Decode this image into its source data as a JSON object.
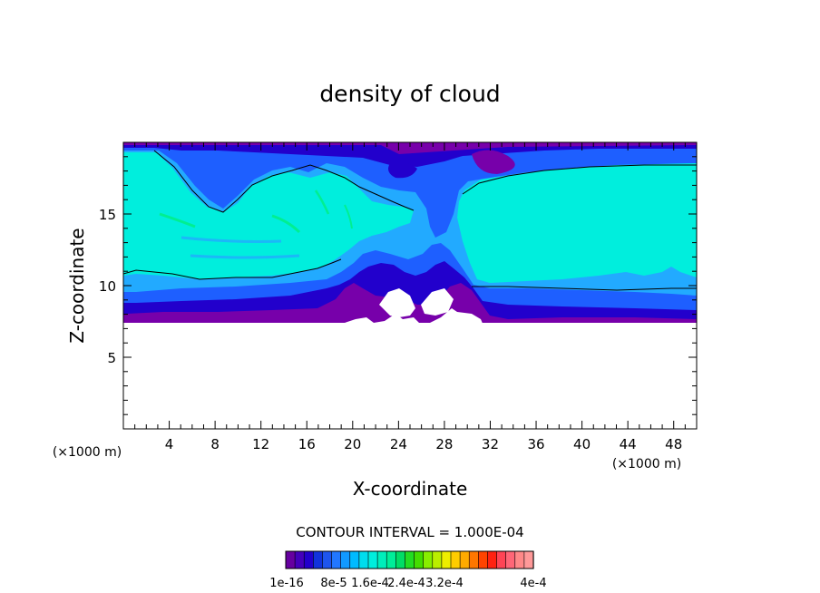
{
  "chart_data": {
    "type": "heatmap",
    "title": "density of cloud",
    "xlabel": "X-coordinate",
    "ylabel": "Z-coordinate",
    "x_unit": "(×1000 m)",
    "y_unit": "(×1000 m)",
    "xlim": [
      0,
      50
    ],
    "ylim": [
      0,
      20
    ],
    "x_ticks": [
      4,
      8,
      12,
      16,
      20,
      24,
      28,
      32,
      36,
      40,
      44,
      48
    ],
    "y_ticks": [
      5,
      10,
      15
    ],
    "contour_interval_text": "CONTOUR INTERVAL = 1.000E-04",
    "colorbar": {
      "labels": [
        "1e-16",
        "8e-5",
        "1.6e-4",
        "2.4e-4",
        "3.2e-4",
        "4e-4"
      ],
      "colors": [
        "#6600a0",
        "#4400bb",
        "#2200cc",
        "#1133dd",
        "#1e55ee",
        "#2277ff",
        "#1199ff",
        "#00bbff",
        "#00ddee",
        "#00eedd",
        "#00eebb",
        "#00ee99",
        "#00dd66",
        "#22dd22",
        "#44dd00",
        "#88ee00",
        "#bbee00",
        "#eeee00",
        "#ffcc00",
        "#ffaa00",
        "#ff7700",
        "#ff4400",
        "#ff2211",
        "#ff4455",
        "#ff6677",
        "#ff8888",
        "#ff9999"
      ]
    },
    "fill_colors": {
      "purple": "#7700aa",
      "dark_blue": "#2200cc",
      "blue": "#1e5fff",
      "light_blue": "#22aaff",
      "cyan": "#00eedd",
      "green": "#00ee88"
    }
  }
}
